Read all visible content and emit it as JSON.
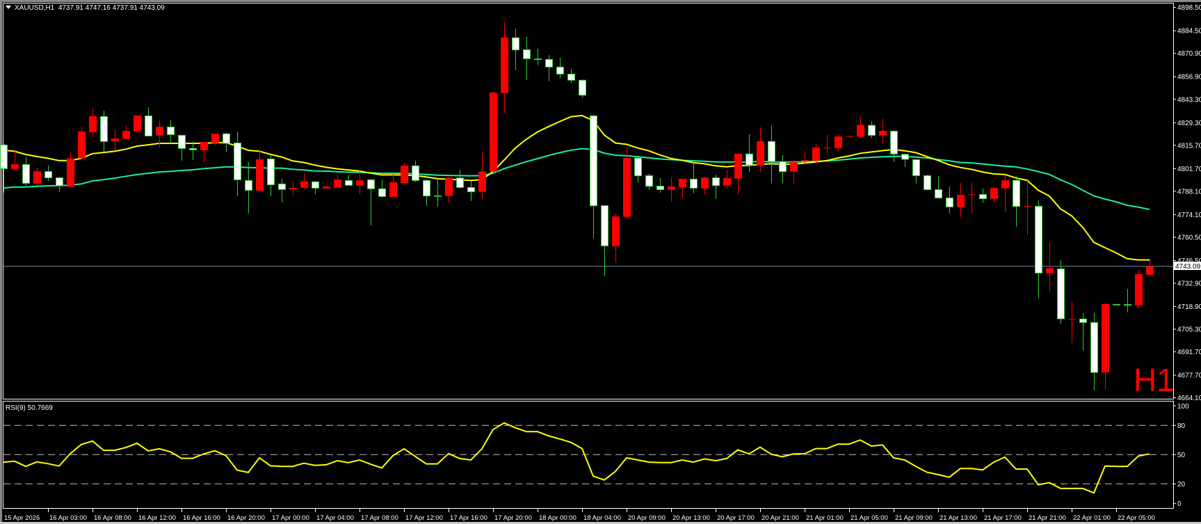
{
  "header": {
    "symbol": "XAUUSD,H1",
    "ohlc_text": "4737.91 4747.16 4737.91 4743.09"
  },
  "timeframe_watermark": "H1",
  "rsi_label": "RSI(9) 50.7669",
  "current_price_label": "4743.09",
  "colors": {
    "background": "#000000",
    "bull_body": "#FF0000",
    "bull_wick": "#FF0000",
    "bear_body": "#FFFFFF",
    "bear_outline": "#32CD32",
    "ma_fast": "#FFFF00",
    "ma_slow": "#19EFA0",
    "rsi_line": "#FFFF00",
    "level_lines": "#C0C0C0",
    "price_line": "#778899",
    "axis_text": "#FFFFFF",
    "watermark": "#FF0000"
  },
  "chart_data": [
    {
      "type": "candlestick",
      "symbol": "XAUUSD",
      "timeframe": "H1",
      "ylim": [
        4664.1,
        4898.5
      ],
      "grid": false,
      "y_tick_labels": [
        "4898.50",
        "4884.50",
        "4870.90",
        "4856.90",
        "4843.30",
        "4829.30",
        "4815.70",
        "4801.70",
        "4788.10",
        "4774.10",
        "4760.50",
        "4746.50",
        "4732.90",
        "4718.90",
        "4705.30",
        "4691.70",
        "4677.70",
        "4664.10"
      ],
      "x_tick_labels": [
        "15 Apr 2026",
        "16 Apr 03:00",
        "16 Apr 08:00",
        "16 Apr 12:00",
        "16 Apr 16:00",
        "16 Apr 20:00",
        "17 Apr 00:00",
        "17 Apr 04:00",
        "17 Apr 08:00",
        "17 Apr 12:00",
        "17 Apr 16:00",
        "17 Apr 20:00",
        "18 Apr 00:00",
        "18 Apr 04:00",
        "20 Apr 09:00",
        "20 Apr 13:00",
        "20 Apr 17:00",
        "20 Apr 21:00",
        "21 Apr 01:00",
        "21 Apr 05:00",
        "21 Apr 09:00",
        "21 Apr 13:00",
        "21 Apr 17:00",
        "21 Apr 21:00",
        "22 Apr 01:00",
        "22 Apr 05:00"
      ],
      "current_price": 4743.09,
      "ohlc_fields": [
        "open",
        "high",
        "low",
        "close"
      ],
      "candles": [
        [
          4815.9,
          4816.6,
          4787.3,
          4801.7
        ],
        [
          4801.5,
          4813.1,
          4800.3,
          4804.3
        ],
        [
          4804.2,
          4808.9,
          4791.5,
          4792.9
        ],
        [
          4792.7,
          4802.2,
          4791.5,
          4800.1
        ],
        [
          4800.0,
          4803.6,
          4794.3,
          4796.2
        ],
        [
          4796.2,
          4796.8,
          4787.7,
          4791.5
        ],
        [
          4790.8,
          4812.1,
          4790.8,
          4807.9
        ],
        [
          4807.9,
          4826.9,
          4807.5,
          4824.0
        ],
        [
          4823.5,
          4837.8,
          4820.8,
          4833.2
        ],
        [
          4833.0,
          4836.5,
          4811.7,
          4818.0
        ],
        [
          4818.2,
          4825.2,
          4812.7,
          4819.8
        ],
        [
          4819.5,
          4827.3,
          4819.1,
          4824.4
        ],
        [
          4824.1,
          4833.6,
          4822.8,
          4833.6
        ],
        [
          4833.4,
          4838.6,
          4821.3,
          4821.3
        ],
        [
          4821.6,
          4830.7,
          4814.5,
          4826.9
        ],
        [
          4826.7,
          4831.1,
          4816.9,
          4822.1
        ],
        [
          4821.7,
          4822.1,
          4806.5,
          4813.8
        ],
        [
          4813.8,
          4818.1,
          4806.8,
          4813.0
        ],
        [
          4812.8,
          4817.7,
          4805.3,
          4817.7
        ],
        [
          4817.1,
          4822.7,
          4815.6,
          4822.7
        ],
        [
          4822.6,
          4823.4,
          4811.6,
          4816.9
        ],
        [
          4817.1,
          4824.0,
          4785.2,
          4795.0
        ],
        [
          4794.6,
          4805.6,
          4774.8,
          4788.7
        ],
        [
          4788.5,
          4813.1,
          4788.0,
          4807.3
        ],
        [
          4807.5,
          4809.6,
          4785.2,
          4792.0
        ],
        [
          4792.5,
          4795.6,
          4781.5,
          4789.2
        ],
        [
          4789.2,
          4794.3,
          4785.7,
          4790.1
        ],
        [
          4790.3,
          4798.9,
          4789.4,
          4794.0
        ],
        [
          4793.8,
          4794.3,
          4786.4,
          4790.0
        ],
        [
          4789.8,
          4791.0,
          4789.8,
          4791.0
        ],
        [
          4790.3,
          4798.1,
          4790.3,
          4795.1
        ],
        [
          4794.6,
          4798.1,
          4791.7,
          4791.7
        ],
        [
          4791.5,
          4801.3,
          4786.1,
          4794.7
        ],
        [
          4795.0,
          4795.4,
          4767.7,
          4789.6
        ],
        [
          4789.6,
          4795.2,
          4784.3,
          4785.0
        ],
        [
          4784.7,
          4798.5,
          4784.7,
          4793.5
        ],
        [
          4793.0,
          4804.8,
          4792.6,
          4803.5
        ],
        [
          4803.4,
          4806.4,
          4793.6,
          4794.6
        ],
        [
          4794.6,
          4795.4,
          4779.4,
          4785.3
        ],
        [
          4785.4,
          4795.4,
          4778.7,
          4785.0
        ],
        [
          4785.3,
          4796.7,
          4781.1,
          4796.3
        ],
        [
          4796.1,
          4801.0,
          4789.8,
          4790.4
        ],
        [
          4790.4,
          4794.3,
          4782.3,
          4787.8
        ],
        [
          4787.8,
          4811.9,
          4783.6,
          4800.0
        ],
        [
          4799.9,
          4847.8,
          4797.9,
          4847.4
        ],
        [
          4847.1,
          4889.6,
          4835.0,
          4880.4
        ],
        [
          4880.3,
          4885.8,
          4860.9,
          4873.0
        ],
        [
          4873.1,
          4880.8,
          4854.9,
          4867.7
        ],
        [
          4867.6,
          4873.7,
          4863.8,
          4867.4
        ],
        [
          4867.3,
          4869.8,
          4854.2,
          4862.7
        ],
        [
          4862.7,
          4868.3,
          4855.9,
          4858.5
        ],
        [
          4858.5,
          4861.6,
          4853.0,
          4854.8
        ],
        [
          4854.8,
          4855.3,
          4844.5,
          4845.8
        ],
        [
          4833.4,
          4833.9,
          4759.8,
          4779.4
        ],
        [
          4779.5,
          4779.5,
          4737.2,
          4755.3
        ],
        [
          4755.2,
          4774.7,
          4745.1,
          4773.0
        ],
        [
          4772.7,
          4814.8,
          4772.0,
          4808.1
        ],
        [
          4808.0,
          4809.0,
          4793.2,
          4797.4
        ],
        [
          4797.5,
          4798.5,
          4789.0,
          4791.1
        ],
        [
          4791.2,
          4796.0,
          4787.3,
          4789.1
        ],
        [
          4789.0,
          4796.3,
          4781.8,
          4791.0
        ],
        [
          4790.5,
          4795.6,
          4784.0,
          4795.6
        ],
        [
          4795.4,
          4805.4,
          4786.9,
          4790.0
        ],
        [
          4789.8,
          4796.4,
          4786.0,
          4796.4
        ],
        [
          4796.2,
          4798.1,
          4783.6,
          4791.5
        ],
        [
          4791.5,
          4801.0,
          4789.8,
          4796.0
        ],
        [
          4795.7,
          4811.0,
          4786.5,
          4810.6
        ],
        [
          4810.5,
          4822.3,
          4799.5,
          4803.8
        ],
        [
          4803.6,
          4826.5,
          4799.7,
          4818.1
        ],
        [
          4818.0,
          4827.7,
          4792.8,
          4805.9
        ],
        [
          4805.9,
          4809.8,
          4792.8,
          4799.9
        ],
        [
          4799.9,
          4806.8,
          4792.8,
          4805.7
        ],
        [
          4806.2,
          4812.3,
          4803.8,
          4806.8
        ],
        [
          4806.4,
          4816.9,
          4805.4,
          4814.4
        ],
        [
          4814.2,
          4821.9,
          4810.3,
          4814.3
        ],
        [
          4814.1,
          4822.2,
          4812.0,
          4821.0
        ],
        [
          4821.0,
          4821.5,
          4820.8,
          4821.2
        ],
        [
          4820.8,
          4832.5,
          4820.3,
          4828.0
        ],
        [
          4827.7,
          4830.0,
          4819.9,
          4821.7
        ],
        [
          4821.6,
          4831.5,
          4817.0,
          4824.4
        ],
        [
          4824.2,
          4824.9,
          4805.7,
          4810.5
        ],
        [
          4810.3,
          4810.3,
          4802.7,
          4807.3
        ],
        [
          4807.1,
          4807.1,
          4792.8,
          4797.5
        ],
        [
          4797.5,
          4798.0,
          4788.6,
          4789.1
        ],
        [
          4789.1,
          4797.2,
          4783.6,
          4784.1
        ],
        [
          4784.1,
          4791.0,
          4774.8,
          4778.7
        ],
        [
          4778.6,
          4793.0,
          4772.7,
          4785.9
        ],
        [
          4786.0,
          4793.0,
          4774.8,
          4786.2
        ],
        [
          4786.2,
          4789.7,
          4781.1,
          4783.7
        ],
        [
          4783.6,
          4790.5,
          4781.1,
          4790.1
        ],
        [
          4789.8,
          4797.6,
          4775.5,
          4794.7
        ],
        [
          4794.7,
          4797.1,
          4766.9,
          4779.0
        ],
        [
          4779.1,
          4794.4,
          4761.8,
          4779.2
        ],
        [
          4779.1,
          4782.6,
          4723.8,
          4739.0
        ],
        [
          4738.9,
          4757.5,
          4728.0,
          4741.9
        ],
        [
          4741.5,
          4746.7,
          4708.3,
          4711.5
        ],
        [
          4711.0,
          4722.1,
          4697.0,
          4711.4
        ],
        [
          4711.4,
          4714.9,
          4692.6,
          4709.3
        ],
        [
          4709.3,
          4715.3,
          4668.6,
          4679.3
        ],
        [
          4679.3,
          4720.7,
          4668.9,
          4720.4
        ],
        [
          4720.2,
          4720.2,
          4720.2,
          4720.1
        ],
        [
          4720.1,
          4729.5,
          4715.4,
          4720.0
        ],
        [
          4719.6,
          4740.7,
          4717.9,
          4738.3
        ],
        [
          4737.91,
          4747.16,
          4737.91,
          4743.09
        ]
      ],
      "ma_fast": [
        4812.8,
        4812.1,
        4810.2,
        4809.0,
        4807.9,
        4806.5,
        4806.5,
        4807.9,
        4810.7,
        4811.4,
        4812.1,
        4813.4,
        4815.2,
        4816.0,
        4816.9,
        4816.9,
        4816.9,
        4816.9,
        4816.9,
        4817.3,
        4817.3,
        4815.2,
        4812.7,
        4812.1,
        4810.3,
        4808.7,
        4806.3,
        4805.4,
        4803.8,
        4802.5,
        4801.6,
        4800.9,
        4800.3,
        4799.0,
        4797.9,
        4797.9,
        4797.9,
        4797.5,
        4796.7,
        4795.7,
        4795.3,
        4795.0,
        4794.6,
        4795.1,
        4799.9,
        4806.9,
        4814.1,
        4819.4,
        4823.8,
        4827.0,
        4830.0,
        4832.9,
        4833.6,
        4830.5,
        4821.8,
        4817.1,
        4816.3,
        4814.1,
        4812.4,
        4809.9,
        4807.8,
        4806.7,
        4805.3,
        4804.6,
        4803.4,
        4802.8,
        4803.5,
        4803.6,
        4804.3,
        4804.7,
        4804.3,
        4804.4,
        4805.0,
        4805.7,
        4806.5,
        4808.1,
        4809.3,
        4810.9,
        4811.7,
        4812.5,
        4813.2,
        4812.4,
        4811.3,
        4808.9,
        4806.6,
        4804.0,
        4802.4,
        4801.3,
        4799.7,
        4798.5,
        4798.2,
        4796.1,
        4794.7,
        4788.7,
        4785.2,
        4777.5,
        4773.4,
        4766.4,
        4757.4,
        4754.2,
        4751.1,
        4747.6,
        4746.9,
        4746.9
      ],
      "ma_slow": [
        4790.1,
        4790.7,
        4790.7,
        4791.1,
        4791.4,
        4791.5,
        4791.8,
        4792.5,
        4794.3,
        4795.1,
        4796.0,
        4797.1,
        4798.1,
        4798.9,
        4799.7,
        4800.1,
        4800.6,
        4801.0,
        4801.7,
        4802.2,
        4802.7,
        4802.7,
        4802.4,
        4802.2,
        4802.0,
        4802.0,
        4801.3,
        4800.9,
        4800.3,
        4800.2,
        4799.8,
        4799.6,
        4799.5,
        4799.2,
        4798.9,
        4798.9,
        4798.9,
        4798.6,
        4798.2,
        4797.8,
        4797.6,
        4797.5,
        4797.4,
        4797.5,
        4799.0,
        4801.7,
        4803.8,
        4805.9,
        4807.7,
        4809.6,
        4811.3,
        4812.8,
        4813.7,
        4813.2,
        4811.0,
        4809.8,
        4809.4,
        4808.9,
        4808.2,
        4807.5,
        4807.1,
        4806.7,
        4806.4,
        4806.1,
        4805.7,
        4805.7,
        4805.7,
        4805.7,
        4806.0,
        4805.8,
        4805.6,
        4805.7,
        4805.8,
        4806.1,
        4806.3,
        4806.8,
        4807.4,
        4808.1,
        4808.5,
        4808.8,
        4809.1,
        4809.0,
        4808.6,
        4808.1,
        4807.2,
        4806.4,
        4805.4,
        4805.2,
        4804.5,
        4803.8,
        4803.2,
        4802.7,
        4801.5,
        4799.9,
        4798.2,
        4795.0,
        4792.2,
        4788.7,
        4785.3,
        4783.4,
        4781.8,
        4779.7,
        4778.6,
        4777.2
      ]
    },
    {
      "type": "line",
      "indicator": "RSI(9)",
      "ylim": [
        0,
        100
      ],
      "levels": [
        80,
        50,
        20
      ],
      "y_tick_labels": [
        "100",
        "80",
        "50",
        "20",
        "0"
      ],
      "values": [
        42.3,
        43.2,
        37.9,
        42.5,
        40.7,
        38.3,
        51.1,
        60.4,
        63.9,
        54.4,
        54.4,
        57.3,
        61.7,
        53.8,
        56.0,
        52.9,
        46.2,
        46.2,
        50.7,
        54.0,
        48.9,
        34.1,
        31.7,
        46.7,
        38.5,
        37.9,
        37.9,
        41.2,
        39.0,
        39.6,
        43.8,
        41.8,
        44.5,
        40.1,
        36.3,
        48.9,
        56.0,
        48.2,
        40.5,
        40.5,
        51.1,
        46.0,
        44.5,
        56.0,
        75.8,
        82.5,
        77.6,
        73.6,
        73.6,
        69.2,
        66.1,
        62.6,
        56.2,
        27.9,
        24.0,
        32.8,
        46.7,
        44.5,
        42.3,
        41.8,
        41.8,
        44.5,
        42.3,
        45.6,
        43.8,
        46.0,
        54.9,
        50.7,
        57.7,
        50.4,
        47.8,
        50.7,
        50.9,
        56.2,
        56.2,
        60.8,
        60.8,
        65.0,
        58.8,
        59.9,
        46.7,
        44.5,
        37.9,
        31.9,
        29.5,
        26.8,
        35.7,
        35.7,
        34.3,
        42.3,
        47.4,
        35.2,
        35.2,
        19.1,
        21.3,
        15.3,
        15.3,
        15.3,
        10.7,
        38.3,
        37.9,
        37.9,
        48.5,
        50.77
      ]
    }
  ]
}
